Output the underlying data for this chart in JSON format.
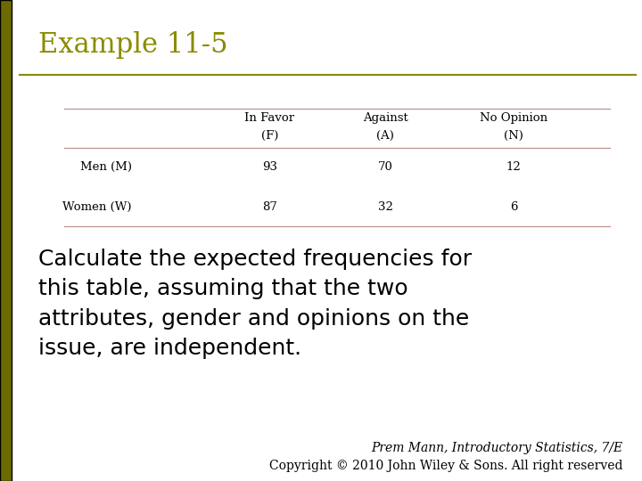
{
  "title": "Example 11-5",
  "title_color": "#8B8B00",
  "title_fontsize": 22,
  "background_color": "#FFFFFF",
  "left_bar_color": "#6B6B00",
  "divider_color": "#8B8B00",
  "table": {
    "col_headers_line1": [
      "In Favor",
      "Against",
      "No Opinion"
    ],
    "col_headers_line2": [
      "(F)",
      "(A)",
      "(N)"
    ],
    "row_labels": [
      "Men (M)",
      "Women (W)"
    ],
    "data": [
      [
        93,
        70,
        12
      ],
      [
        87,
        32,
        6
      ]
    ],
    "line_color": "#C09090"
  },
  "body_text": "Calculate the expected frequencies for\nthis table, assuming that the two\nattributes, gender and opinions on the\nissue, are independent.",
  "body_fontsize": 18,
  "footer_line1": "Prem Mann, Introductory Statistics, 7/E",
  "footer_line2": "Copyright © 2010 John Wiley & Sons. All right reserved",
  "footer_fontsize": 10
}
